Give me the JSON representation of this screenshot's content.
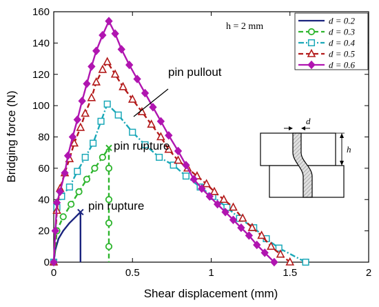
{
  "chart_data": {
    "type": "line",
    "xlabel": "Shear displacement (mm)",
    "ylabel": "Bridging force (N)",
    "xlim": [
      0,
      2
    ],
    "ylim": [
      0,
      160
    ],
    "xticks": [
      0,
      0.5,
      1,
      1.5,
      2
    ],
    "xtick_labels": [
      "0",
      "0.5",
      "1",
      "1.5",
      "2"
    ],
    "yticks": [
      0,
      20,
      40,
      60,
      80,
      100,
      120,
      140,
      160
    ],
    "ytick_labels": [
      "0",
      "20",
      "40",
      "60",
      "80",
      "100",
      "120",
      "140",
      "160"
    ],
    "grid": false,
    "legend_position": "top-right",
    "parameter_label": "h = 2 mm",
    "series": [
      {
        "name": "d = 0.2",
        "color": "#1a237e",
        "marker": "none",
        "dash": "solid",
        "x": [
          0,
          0.01,
          0.03,
          0.06,
          0.1,
          0.14,
          0.17
        ],
        "y": [
          0,
          8,
          15,
          20,
          25,
          29,
          32
        ],
        "drop": {
          "x": 0.17,
          "to_y": 0
        },
        "end_marker": "x"
      },
      {
        "name": "d = 0.3",
        "color": "#2db52d",
        "marker": "circle",
        "dash": "dashed",
        "x": [
          0,
          0.02,
          0.06,
          0.11,
          0.16,
          0.21,
          0.26,
          0.31,
          0.35
        ],
        "y": [
          0,
          20,
          29,
          37,
          45,
          53,
          60,
          67,
          73
        ],
        "drop": {
          "x": 0.35,
          "to_y": 0,
          "points": [
            60,
            40,
            25,
            10
          ]
        },
        "end_marker": "x"
      },
      {
        "name": "d = 0.4",
        "color": "#1aa8b8",
        "marker": "square",
        "dash": "dashdot",
        "x": [
          0,
          0.02,
          0.05,
          0.1,
          0.15,
          0.2,
          0.25,
          0.3,
          0.34,
          0.41,
          0.5,
          0.58,
          0.67,
          0.76,
          0.84,
          0.93,
          1.01,
          1.1,
          1.18,
          1.27,
          1.35,
          1.43,
          1.6
        ],
        "y": [
          0,
          35,
          42,
          48,
          58,
          67,
          76,
          90,
          101,
          94,
          83,
          75,
          67,
          62,
          55,
          48,
          42,
          35,
          28,
          22,
          15,
          9,
          0
        ]
      },
      {
        "name": "d = 0.5",
        "color": "#b31a1a",
        "marker": "triangle",
        "dash": "dashed",
        "x": [
          0,
          0.02,
          0.04,
          0.07,
          0.1,
          0.13,
          0.17,
          0.2,
          0.24,
          0.27,
          0.31,
          0.34,
          0.39,
          0.44,
          0.5,
          0.56,
          0.62,
          0.68,
          0.73,
          0.79,
          0.85,
          0.91,
          0.97,
          1.02,
          1.08,
          1.14,
          1.2,
          1.26,
          1.32,
          1.38,
          1.44,
          1.5
        ],
        "y": [
          0,
          33,
          47,
          57,
          66,
          76,
          86,
          95,
          105,
          115,
          123,
          128,
          120,
          112,
          104,
          96,
          88,
          80,
          72,
          65,
          60,
          55,
          50,
          45,
          40,
          35,
          28,
          22,
          17,
          10,
          5,
          0
        ]
      },
      {
        "name": "d = 0.6",
        "color": "#b015b0",
        "marker": "diamond",
        "dash": "solid",
        "x": [
          0,
          0.01,
          0.02,
          0.04,
          0.07,
          0.09,
          0.12,
          0.15,
          0.18,
          0.21,
          0.24,
          0.27,
          0.31,
          0.35,
          0.39,
          0.43,
          0.48,
          0.53,
          0.58,
          0.63,
          0.68,
          0.73,
          0.79,
          0.84,
          0.89,
          0.94,
          0.99,
          1.04,
          1.09,
          1.14,
          1.19,
          1.24,
          1.29,
          1.34,
          1.4
        ],
        "y": [
          0,
          20,
          38,
          45,
          57,
          68,
          80,
          91,
          103,
          114,
          125,
          135,
          145,
          154,
          146,
          136,
          126,
          117,
          108,
          99,
          90,
          81,
          71,
          62,
          53,
          47,
          42,
          37,
          32,
          27,
          22,
          17,
          11,
          6,
          0
        ]
      }
    ],
    "annotations": [
      {
        "text": "pin pullout",
        "x": 1.07,
        "y": 112
      },
      {
        "text": "pin rupture",
        "x": 0.59,
        "y": 74
      },
      {
        "text": "pin rupture",
        "x": 0.29,
        "y": 32
      }
    ],
    "inset": {
      "d_label": "d",
      "h_label": "h"
    }
  }
}
